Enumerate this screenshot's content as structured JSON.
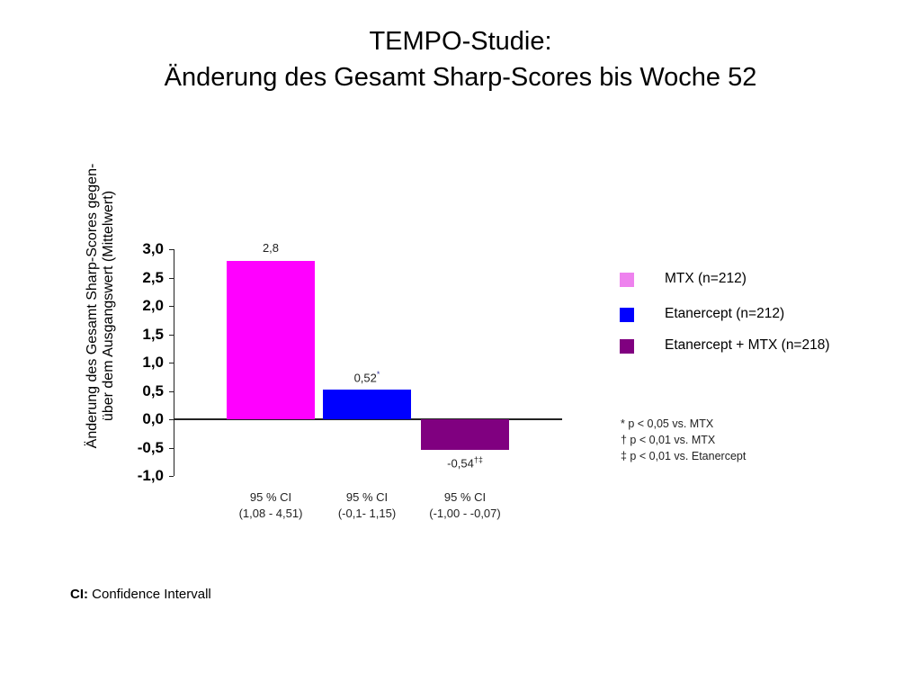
{
  "header": {
    "title_line1": "TEMPO-Studie:",
    "title_line2": "Änderung des Gesamt Sharp-Scores bis Woche 52"
  },
  "axis": {
    "ylabel_line1": "Änderung des Gesamt Sharp-Scores gegen-",
    "ylabel_line2": "über dem Ausgangswert (Mittelwert)",
    "ticks": [
      "3,0",
      "2,5",
      "2,0",
      "1,5",
      "1,0",
      "0,5",
      "0,0",
      "-0,5",
      "-1,0"
    ]
  },
  "bars": [
    {
      "label": "2,8",
      "sup": "",
      "color": "#ff00ff",
      "ci_line1": "95 % CI",
      "ci_line2": "(1,08 - 4,51)"
    },
    {
      "label": "0,52",
      "sup": "*",
      "color": "#0000ff",
      "ci_line1": "95 % CI",
      "ci_line2": "(-0,1- 1,15)"
    },
    {
      "label": "-0,54",
      "sup": "†‡",
      "color": "#800080",
      "ci_line1": "95 % CI",
      "ci_line2": "(-1,00 - -0,07)"
    }
  ],
  "legend": [
    {
      "label": "MTX (n=212)",
      "color": "#ee82ee"
    },
    {
      "label": "Etanercept (n=212)",
      "color": "#0000ff"
    },
    {
      "label": "Etanercept + MTX (n=218)",
      "color": "#800080"
    }
  ],
  "notes": [
    "* p < 0,05 vs. MTX",
    "† p < 0,01 vs. MTX",
    "‡ p < 0,01 vs. Etanercept"
  ],
  "footer": {
    "bold": "CI:",
    "text": " Confidence Intervall"
  },
  "chart_data": {
    "type": "bar",
    "title": "TEMPO-Studie: Änderung des Gesamt Sharp-Scores bis Woche 52",
    "xlabel": "",
    "ylabel": "Änderung des Gesamt Sharp-Scores gegenüber dem Ausgangswert (Mittelwert)",
    "categories": [
      "MTX (n=212)",
      "Etanercept (n=212)",
      "Etanercept + MTX (n=218)"
    ],
    "values": [
      2.8,
      0.52,
      -0.54
    ],
    "value_labels": [
      "2,8",
      "0,52*",
      "-0,54†‡"
    ],
    "confidence_intervals": [
      [
        1.08,
        4.51
      ],
      [
        -0.1,
        1.15
      ],
      [
        -1.0,
        -0.07
      ]
    ],
    "colors": [
      "#ff00ff",
      "#0000ff",
      "#800080"
    ],
    "ylim": [
      -1.0,
      3.0
    ],
    "yticks": [
      3.0,
      2.5,
      2.0,
      1.5,
      1.0,
      0.5,
      0.0,
      -0.5,
      -1.0
    ],
    "grid": false,
    "legend_position": "right",
    "annotations": [
      "* p < 0,05 vs. MTX",
      "† p < 0,01 vs. MTX",
      "‡ p < 0,01 vs. Etanercept",
      "CI: Confidence Intervall"
    ]
  }
}
